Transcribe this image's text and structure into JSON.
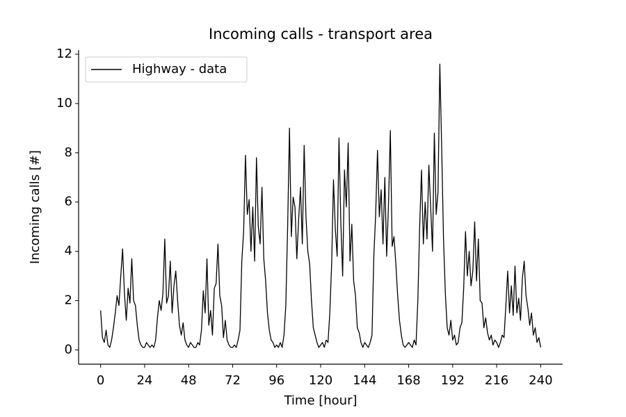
{
  "chart_data": {
    "type": "line",
    "title": "Incoming calls - transport area",
    "xlabel": "Time [hour]",
    "ylabel": "Incoming calls [#]",
    "xlim": [
      -12,
      252
    ],
    "ylim": [
      -0.58,
      12.17
    ],
    "xticks": [
      0,
      24,
      48,
      72,
      96,
      120,
      144,
      168,
      192,
      216,
      240
    ],
    "yticks": [
      0,
      2,
      4,
      6,
      8,
      10,
      12
    ],
    "legend": "upper left",
    "series": [
      {
        "name": "Highway - data",
        "color": "#000000",
        "x": [
          0,
          1,
          2,
          3,
          4,
          5,
          6,
          7,
          8,
          9,
          10,
          11,
          12,
          13,
          14,
          15,
          16,
          17,
          18,
          19,
          20,
          21,
          22,
          23,
          24,
          25,
          26,
          27,
          28,
          29,
          30,
          31,
          32,
          33,
          34,
          35,
          36,
          37,
          38,
          39,
          40,
          41,
          42,
          43,
          44,
          45,
          46,
          47,
          48,
          49,
          50,
          51,
          52,
          53,
          54,
          55,
          56,
          57,
          58,
          59,
          60,
          61,
          62,
          63,
          64,
          65,
          66,
          67,
          68,
          69,
          70,
          71,
          72,
          73,
          74,
          75,
          76,
          77,
          78,
          79,
          80,
          81,
          82,
          83,
          84,
          85,
          86,
          87,
          88,
          89,
          90,
          91,
          92,
          93,
          94,
          95,
          96,
          97,
          98,
          99,
          100,
          101,
          102,
          103,
          104,
          105,
          106,
          107,
          108,
          109,
          110,
          111,
          112,
          113,
          114,
          115,
          116,
          117,
          118,
          119,
          120,
          121,
          122,
          123,
          124,
          125,
          126,
          127,
          128,
          129,
          130,
          131,
          132,
          133,
          134,
          135,
          136,
          137,
          138,
          139,
          140,
          141,
          142,
          143,
          144,
          145,
          146,
          147,
          148,
          149,
          150,
          151,
          152,
          153,
          154,
          155,
          156,
          157,
          158,
          159,
          160,
          161,
          162,
          163,
          164,
          165,
          166,
          167,
          168,
          169,
          170,
          171,
          172,
          173,
          174,
          175,
          176,
          177,
          178,
          179,
          180,
          181,
          182,
          183,
          184,
          185,
          186,
          187,
          188,
          189,
          190,
          191,
          192,
          193,
          194,
          195,
          196,
          197,
          198,
          199,
          200,
          201,
          202,
          203,
          204,
          205,
          206,
          207,
          208,
          209,
          210,
          211,
          212,
          213,
          214,
          215,
          216,
          217,
          218,
          219,
          220,
          221,
          222,
          223,
          224,
          225,
          226,
          227,
          228,
          229,
          230,
          231,
          232,
          233,
          234,
          235,
          236,
          237,
          238,
          239,
          240
        ],
        "values": [
          1.6,
          0.5,
          0.3,
          0.8,
          0.2,
          0.1,
          0.4,
          0.9,
          1.5,
          2.2,
          1.8,
          3.0,
          4.1,
          2.3,
          1.2,
          2.5,
          1.9,
          3.7,
          2.0,
          1.8,
          1.0,
          0.4,
          0.2,
          0.1,
          0.1,
          0.3,
          0.2,
          0.1,
          0.2,
          0.1,
          0.4,
          1.3,
          2.0,
          1.6,
          2.3,
          4.5,
          1.9,
          2.2,
          3.6,
          1.5,
          2.6,
          3.2,
          2.0,
          1.0,
          0.6,
          1.1,
          0.4,
          0.2,
          0.1,
          0.3,
          0.2,
          0.1,
          0.1,
          0.3,
          0.2,
          0.8,
          2.4,
          1.5,
          3.7,
          1.0,
          1.6,
          0.6,
          2.5,
          2.7,
          4.3,
          2.2,
          1.8,
          0.5,
          1.2,
          0.4,
          0.2,
          0.1,
          0.1,
          0.2,
          0.1,
          0.4,
          0.8,
          3.6,
          4.8,
          7.9,
          5.5,
          6.1,
          4.0,
          5.8,
          3.6,
          7.8,
          5.0,
          4.3,
          6.6,
          3.7,
          2.8,
          1.5,
          0.8,
          0.4,
          0.3,
          0.1,
          0.2,
          0.1,
          0.3,
          0.1,
          0.6,
          1.8,
          5.0,
          9.0,
          4.6,
          6.2,
          5.8,
          3.7,
          5.3,
          6.6,
          4.3,
          8.3,
          5.4,
          4.0,
          3.5,
          2.0,
          0.9,
          0.6,
          0.3,
          0.1,
          0.2,
          0.3,
          0.1,
          0.4,
          0.3,
          1.5,
          3.5,
          6.9,
          4.9,
          3.8,
          8.6,
          5.2,
          3.0,
          7.3,
          5.8,
          8.4,
          3.6,
          5.1,
          2.8,
          2.2,
          0.9,
          0.7,
          0.3,
          0.1,
          0.3,
          0.2,
          0.1,
          0.3,
          0.6,
          3.8,
          5.5,
          8.1,
          5.4,
          6.5,
          4.3,
          7.0,
          3.8,
          5.9,
          8.9,
          4.2,
          4.6,
          3.5,
          2.2,
          1.2,
          0.6,
          0.2,
          0.1,
          0.2,
          0.3,
          0.2,
          0.1,
          0.4,
          0.2,
          2.0,
          5.0,
          7.3,
          4.3,
          6.0,
          4.5,
          7.5,
          5.8,
          4.0,
          8.8,
          5.5,
          6.4,
          11.6,
          8.2,
          4.5,
          2.3,
          0.9,
          0.6,
          1.2,
          0.4,
          0.6,
          0.2,
          0.3,
          0.9,
          1.1,
          2.5,
          4.8,
          3.0,
          4.0,
          2.6,
          3.2,
          5.2,
          2.8,
          4.5,
          2.0,
          1.9,
          0.9,
          1.3,
          0.7,
          0.4,
          0.6,
          0.2,
          0.4,
          0.3,
          0.1,
          0.3,
          0.6,
          0.5,
          1.8,
          3.2,
          1.5,
          2.6,
          1.4,
          3.4,
          1.5,
          2.1,
          1.2,
          2.9,
          3.6,
          2.2,
          1.7,
          1.0,
          1.5,
          0.6,
          0.9,
          0.3,
          0.5,
          0.1
        ]
      }
    ]
  }
}
